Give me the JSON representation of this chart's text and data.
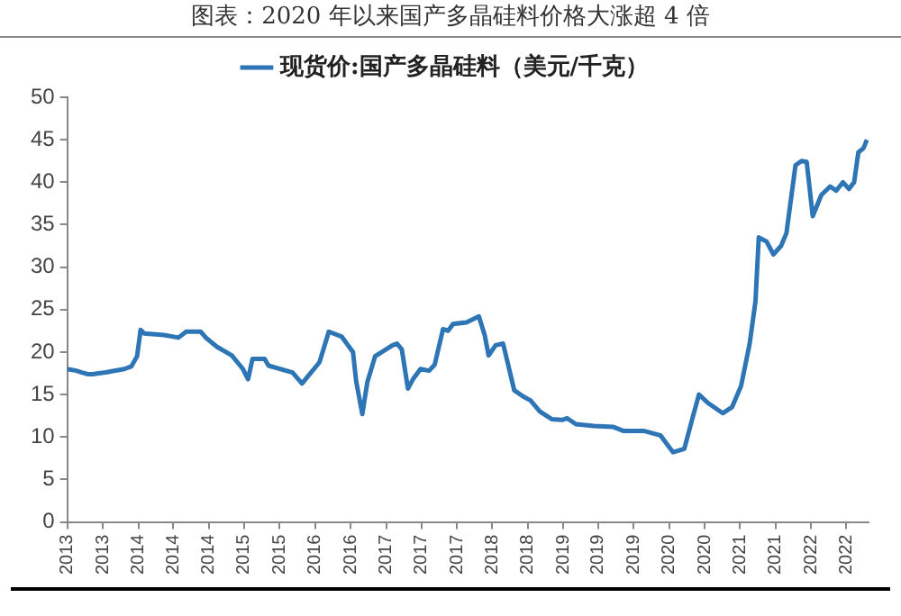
{
  "chart_data": {
    "type": "line",
    "title": "图表：2020 年以来国产多晶硅料价格大涨超 4 倍",
    "x": [
      "2013-04-01",
      "2013-05-10",
      "2013-06-02",
      "2013-06-27",
      "2013-07-19",
      "2013-08-14",
      "2013-09-13",
      "2013-12-02",
      "2014-01-01",
      "2014-01-26",
      "2014-02-10",
      "2014-02-25",
      "2014-05-21",
      "2014-07-23",
      "2014-08-25",
      "2014-10-26",
      "2014-11-21",
      "2015-01-05",
      "2015-03-09",
      "2015-04-26",
      "2015-05-18",
      "2015-06-06",
      "2015-07-28",
      "2015-08-14",
      "2015-11-25",
      "2016-01-05",
      "2016-01-26",
      "2016-03-20",
      "2016-04-29",
      "2016-06-24",
      "2016-08-11",
      "2016-08-25",
      "2016-09-20",
      "2016-10-12",
      "2016-11-14",
      "2017-01-28",
      "2017-02-16",
      "2017-03-09",
      "2017-04-04",
      "2017-04-26",
      "2017-05-28",
      "2017-07-04",
      "2017-07-28",
      "2017-09-02",
      "2017-09-24",
      "2017-10-15",
      "2017-12-12",
      "2018-02-03",
      "2018-02-28",
      "2018-03-17",
      "2018-04-16",
      "2018-05-18",
      "2018-06-09",
      "2018-07-05",
      "2018-08-11",
      "2018-09-13",
      "2018-10-23",
      "2018-12-13",
      "2019-01-26",
      "2019-02-18",
      "2019-03-27",
      "2019-06-13",
      "2019-09-02",
      "2019-10-19",
      "2020-01-15",
      "2020-03-24",
      "2020-04-26",
      "2020-05-18",
      "2020-07-05",
      "2020-08-07",
      "2020-09-06",
      "2020-10-15",
      "2020-12-17",
      "2021-01-26",
      "2021-03-06",
      "2021-04-12",
      "2021-05-07",
      "2021-05-21",
      "2021-06-24",
      "2021-07-23",
      "2021-08-25",
      "2021-09-17",
      "2021-10-26",
      "2021-11-21",
      "2021-12-13",
      "2022-01-08",
      "2022-02-14",
      "2022-03-24",
      "2022-04-19",
      "2022-05-18",
      "2022-06-13",
      "2022-07-05",
      "2022-07-23",
      "2022-08-14",
      "2022-08-29"
    ],
    "series": [
      {
        "name": "现货价:国产多晶硅料（美元/千克）",
        "color": "#2e75b6",
        "values": [
          18.0,
          17.8,
          17.6,
          17.4,
          17.4,
          17.5,
          17.6,
          18.0,
          18.3,
          19.5,
          22.6,
          22.2,
          22.0,
          21.7,
          22.4,
          22.4,
          21.6,
          20.6,
          19.6,
          18.0,
          16.8,
          19.2,
          19.2,
          18.4,
          17.6,
          16.3,
          17.0,
          18.8,
          22.4,
          21.8,
          20.0,
          16.5,
          12.7,
          16.5,
          19.5,
          20.8,
          21.0,
          20.3,
          15.7,
          16.8,
          18.0,
          17.8,
          18.5,
          22.7,
          22.5,
          23.3,
          23.5,
          24.2,
          22.0,
          19.6,
          20.8,
          21.0,
          18.5,
          15.5,
          14.8,
          14.3,
          13.0,
          12.1,
          12.0,
          12.2,
          11.5,
          11.3,
          11.2,
          10.7,
          10.7,
          10.2,
          9.0,
          8.2,
          8.6,
          12.0,
          15.0,
          14.0,
          12.8,
          13.5,
          16.0,
          21.0,
          26.0,
          33.5,
          33.0,
          31.5,
          32.5,
          34.0,
          42.0,
          42.5,
          42.4,
          36.0,
          38.5,
          39.5,
          39.0,
          40.0,
          39.2,
          40.0,
          43.5,
          44.0,
          45.0
        ]
      }
    ],
    "xlim": [
      "2013-04-01",
      "2022-09-05"
    ],
    "xticks": [
      {
        "value": "2013-04",
        "label": "2013"
      },
      {
        "value": "2013-09",
        "label": "2013"
      },
      {
        "value": "2014-02",
        "label": "2014"
      },
      {
        "value": "2014-07",
        "label": "2014"
      },
      {
        "value": "2014-12",
        "label": "2014"
      },
      {
        "value": "2015-05",
        "label": "2015"
      },
      {
        "value": "2015-10",
        "label": "2015"
      },
      {
        "value": "2016-03",
        "label": "2016"
      },
      {
        "value": "2016-08",
        "label": "2016"
      },
      {
        "value": "2017-01",
        "label": "2017"
      },
      {
        "value": "2017-06",
        "label": "2017"
      },
      {
        "value": "2017-11",
        "label": "2017"
      },
      {
        "value": "2018-04",
        "label": "2018"
      },
      {
        "value": "2018-09",
        "label": "2018"
      },
      {
        "value": "2019-02",
        "label": "2019"
      },
      {
        "value": "2019-07",
        "label": "2019"
      },
      {
        "value": "2019-12",
        "label": "2019"
      },
      {
        "value": "2020-05",
        "label": "2020"
      },
      {
        "value": "2020-10",
        "label": "2020"
      },
      {
        "value": "2021-03",
        "label": "2021"
      },
      {
        "value": "2021-08",
        "label": "2021"
      },
      {
        "value": "2022-01",
        "label": "2022"
      },
      {
        "value": "2022-06",
        "label": "2022"
      }
    ],
    "ylim": [
      0,
      50
    ],
    "yticks": [
      0,
      5,
      10,
      15,
      20,
      25,
      30,
      35,
      40,
      45,
      50
    ],
    "grid": false,
    "legend": "top",
    "marker": "none",
    "line_style": "solid"
  }
}
